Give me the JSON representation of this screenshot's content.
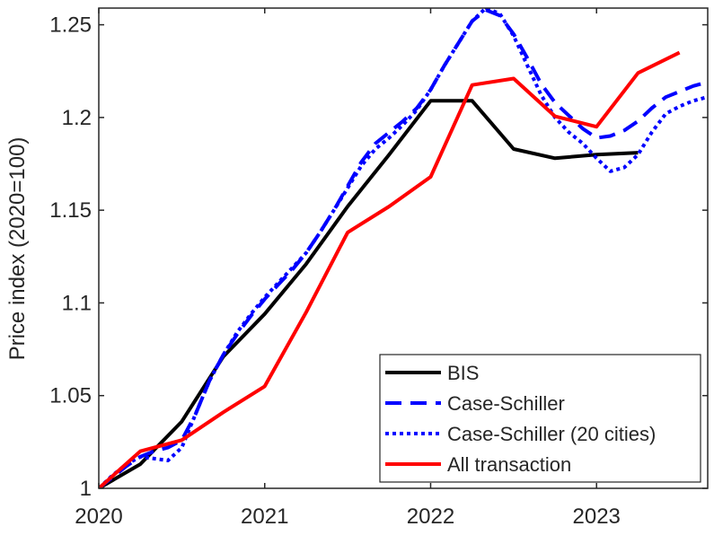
{
  "chart_data": {
    "type": "line",
    "title": "",
    "xlabel": "",
    "ylabel": "Price index (2020=100)",
    "xlim": [
      2020,
      2023.67
    ],
    "ylim": [
      1,
      1.259
    ],
    "xticks": [
      2020,
      2021,
      2022,
      2023
    ],
    "xtick_labels": [
      "2020",
      "2021",
      "2022",
      "2023"
    ],
    "yticks": [
      1,
      1.05,
      1.1,
      1.15,
      1.2,
      1.25
    ],
    "ytick_labels": [
      "1",
      "1.05",
      "1.1",
      "1.15",
      "1.2",
      "1.25"
    ],
    "grid": false,
    "legend_position": "bottom-right",
    "series": [
      {
        "name": "BIS",
        "color": "#000000",
        "style": "solid",
        "x": [
          2020,
          2020.25,
          2020.5,
          2020.75,
          2021,
          2021.25,
          2021.5,
          2021.75,
          2022,
          2022.25,
          2022.5,
          2022.75,
          2023,
          2023.25
        ],
        "y": [
          1.0,
          1.013,
          1.036,
          1.071,
          1.094,
          1.121,
          1.152,
          1.18,
          1.209,
          1.209,
          1.183,
          1.178,
          1.18,
          1.181
        ]
      },
      {
        "name": "Case-Schiller",
        "color": "#0000ff",
        "style": "dashed",
        "x": [
          2020,
          2020.083,
          2020.167,
          2020.25,
          2020.333,
          2020.417,
          2020.5,
          2020.583,
          2020.667,
          2020.75,
          2020.833,
          2020.917,
          2021,
          2021.083,
          2021.167,
          2021.25,
          2021.333,
          2021.417,
          2021.5,
          2021.583,
          2021.667,
          2021.75,
          2021.833,
          2021.917,
          2022,
          2022.083,
          2022.167,
          2022.25,
          2022.333,
          2022.417,
          2022.5,
          2022.583,
          2022.667,
          2022.75,
          2022.833,
          2022.917,
          2023,
          2023.083,
          2023.167,
          2023.25,
          2023.333,
          2023.417,
          2023.5,
          2023.583,
          2023.667
        ],
        "y": [
          1.0,
          1.006,
          1.012,
          1.017,
          1.02,
          1.022,
          1.026,
          1.04,
          1.058,
          1.072,
          1.083,
          1.093,
          1.102,
          1.11,
          1.118,
          1.127,
          1.138,
          1.15,
          1.163,
          1.176,
          1.186,
          1.192,
          1.198,
          1.205,
          1.215,
          1.228,
          1.24,
          1.252,
          1.258,
          1.255,
          1.245,
          1.232,
          1.218,
          1.208,
          1.201,
          1.194,
          1.189,
          1.19,
          1.193,
          1.198,
          1.205,
          1.211,
          1.214,
          1.217,
          1.219
        ]
      },
      {
        "name": "Case-Schiller (20 cities)",
        "color": "#0000ff",
        "style": "dotted",
        "x": [
          2020,
          2020.083,
          2020.167,
          2020.25,
          2020.333,
          2020.417,
          2020.5,
          2020.583,
          2020.667,
          2020.75,
          2020.833,
          2020.917,
          2021,
          2021.083,
          2021.167,
          2021.25,
          2021.333,
          2021.417,
          2021.5,
          2021.583,
          2021.667,
          2021.75,
          2021.833,
          2021.917,
          2022,
          2022.083,
          2022.167,
          2022.25,
          2022.333,
          2022.417,
          2022.5,
          2022.583,
          2022.667,
          2022.75,
          2022.833,
          2022.917,
          2023,
          2023.083,
          2023.167,
          2023.25,
          2023.333,
          2023.417,
          2023.5,
          2023.583,
          2023.667
        ],
        "y": [
          1.0,
          1.007,
          1.013,
          1.017,
          1.016,
          1.015,
          1.022,
          1.04,
          1.058,
          1.072,
          1.084,
          1.094,
          1.103,
          1.111,
          1.119,
          1.127,
          1.138,
          1.15,
          1.162,
          1.174,
          1.183,
          1.189,
          1.196,
          1.204,
          1.215,
          1.228,
          1.24,
          1.252,
          1.259,
          1.256,
          1.244,
          1.228,
          1.212,
          1.2,
          1.192,
          1.186,
          1.178,
          1.171,
          1.173,
          1.18,
          1.192,
          1.202,
          1.206,
          1.209,
          1.211
        ]
      },
      {
        "name": "All transaction",
        "color": "#ff0000",
        "style": "solid",
        "x": [
          2020,
          2020.25,
          2020.5,
          2020.75,
          2021,
          2021.25,
          2021.5,
          2021.75,
          2022,
          2022.25,
          2022.5,
          2022.75,
          2023,
          2023.25,
          2023.5
        ],
        "y": [
          1.0,
          1.02,
          1.026,
          1.041,
          1.055,
          1.095,
          1.138,
          1.152,
          1.168,
          1.2175,
          1.221,
          1.2006,
          1.195,
          1.224,
          1.235
        ]
      }
    ]
  }
}
